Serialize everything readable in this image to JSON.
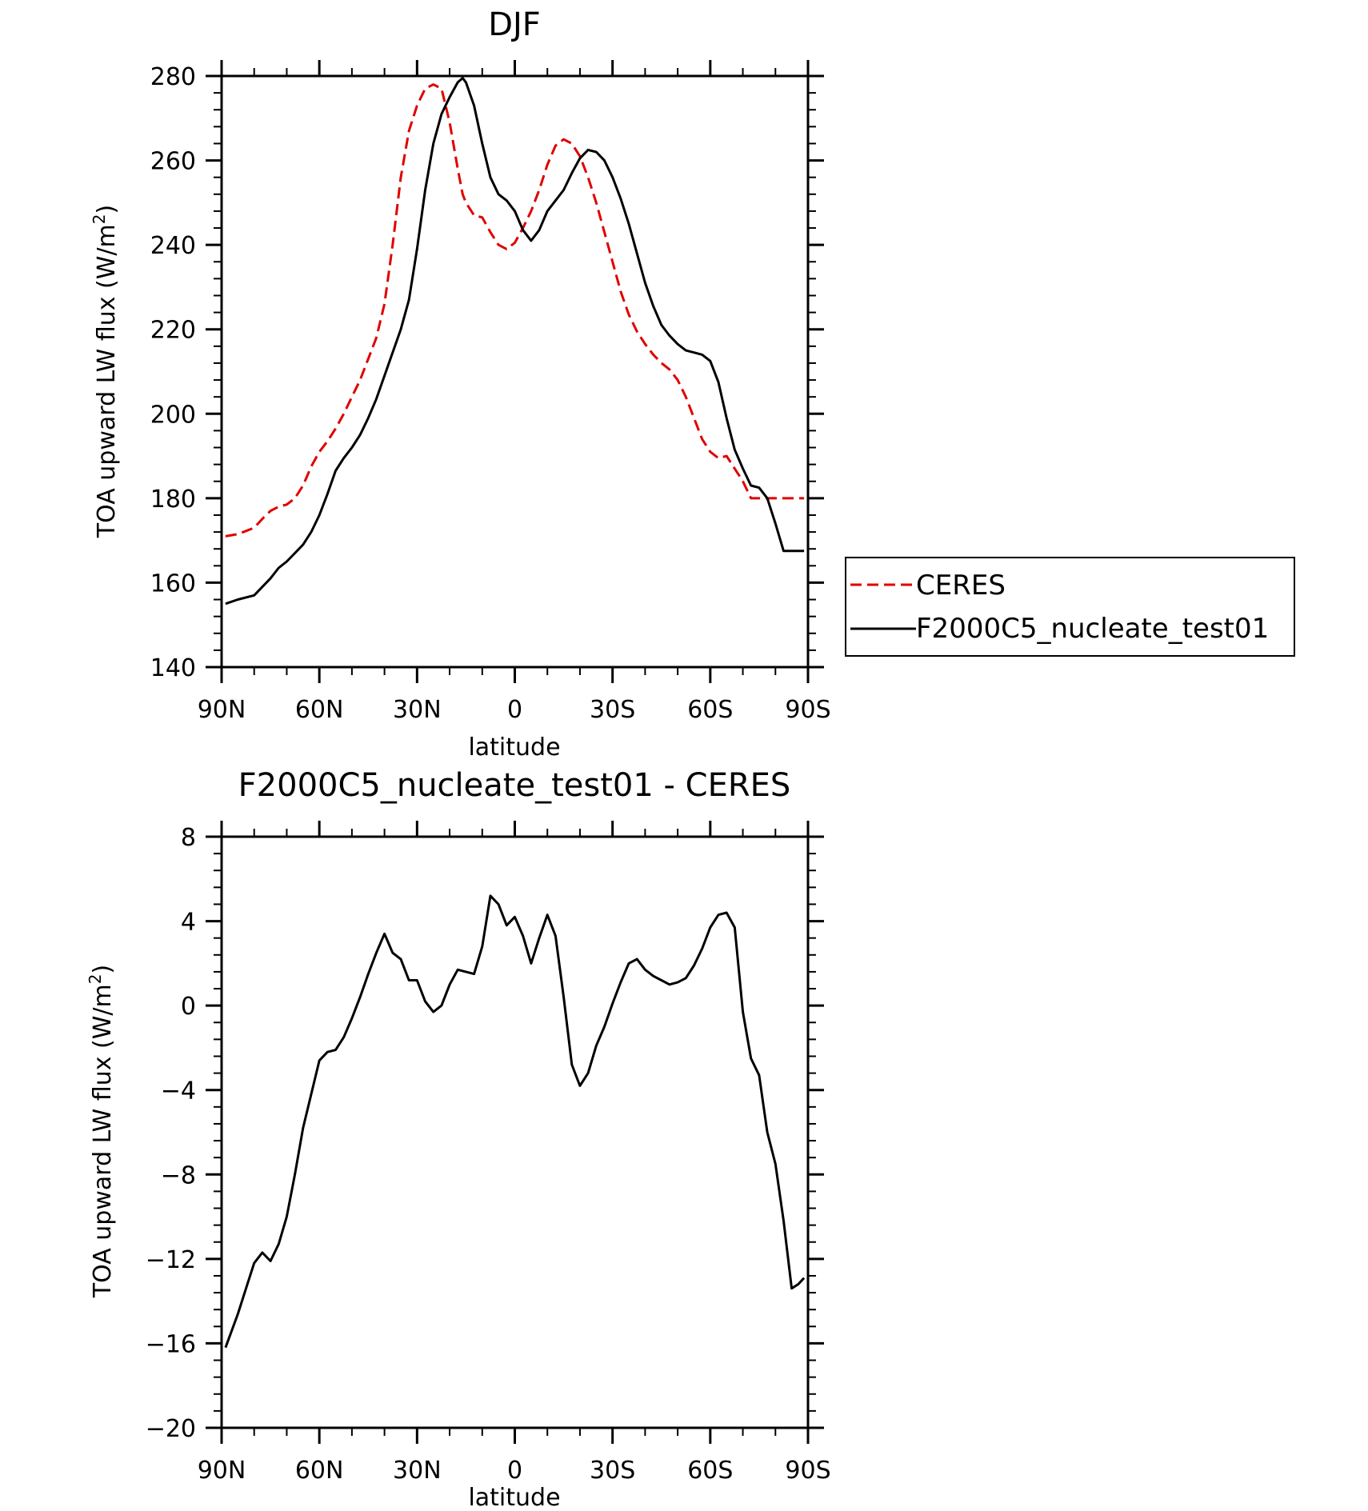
{
  "chart_data": [
    {
      "type": "line",
      "title": "DJF",
      "xlabel": "latitude",
      "ylabel": "TOA upward LW flux (W/m",
      "ylabel_sup": "2",
      "ylabel_close": ")",
      "xlim": [
        90,
        -90
      ],
      "ylim": [
        140,
        280
      ],
      "x_ticks": [
        90,
        60,
        30,
        0,
        -30,
        -60,
        -90
      ],
      "x_tick_labels": [
        "90N",
        "60N",
        "30N",
        "0",
        "30S",
        "60S",
        "90S"
      ],
      "y_ticks": [
        140,
        160,
        180,
        200,
        220,
        240,
        260,
        280
      ],
      "y_tick_labels": [
        "140",
        "160",
        "180",
        "200",
        "220",
        "240",
        "260",
        "280"
      ],
      "legend": {
        "position": "right",
        "entries": [
          "CERES",
          "F2000C5_nucleate_test01"
        ]
      },
      "series": [
        {
          "name": "CERES",
          "color": "#e00000",
          "dash": "dashed",
          "x": [
            88.8,
            85.0,
            80.0,
            77.0,
            75.0,
            72.5,
            70.0,
            67.5,
            65.0,
            62.5,
            60.0,
            57.5,
            55.0,
            52.5,
            50.0,
            47.5,
            45.0,
            42.5,
            40.0,
            37.5,
            35.0,
            32.5,
            30.0,
            27.5,
            25.0,
            22.5,
            20.0,
            17.5,
            16.0,
            15.0,
            12.5,
            10.0,
            7.5,
            5.0,
            2.5,
            0.0,
            -2.5,
            -5.0,
            -7.5,
            -10.0,
            -12.5,
            -15.0,
            -17.5,
            -20.0,
            -22.5,
            -25.0,
            -27.5,
            -30.0,
            -32.5,
            -35.0,
            -37.5,
            -40.0,
            -42.5,
            -45.0,
            -47.5,
            -50.0,
            -52.5,
            -55.0,
            -57.5,
            -60.0,
            -62.5,
            -65.0,
            -67.5,
            -70.0,
            -72.5,
            -75.0,
            -77.5,
            -80.0,
            -82.5,
            -85.0,
            -88.8
          ],
          "y": [
            171.0,
            171.5,
            173.0,
            175.5,
            177.0,
            178.0,
            178.5,
            180.0,
            183.0,
            187.5,
            191.0,
            193.5,
            196.5,
            200.0,
            204.0,
            208.0,
            213.0,
            218.0,
            226.0,
            240.0,
            256.0,
            267.0,
            273.0,
            277.0,
            278.0,
            277.0,
            269.0,
            258.0,
            252.0,
            250.0,
            247.0,
            246.5,
            243.0,
            240.0,
            239.0,
            240.5,
            244.0,
            248.0,
            253.0,
            259.0,
            263.5,
            265.0,
            264.0,
            261.0,
            256.0,
            250.0,
            243.0,
            236.0,
            229.0,
            223.5,
            219.5,
            216.5,
            214.0,
            212.0,
            210.5,
            208.0,
            204.0,
            199.0,
            194.0,
            191.0,
            189.5,
            190.0,
            187.0,
            184.0,
            180.0,
            180.0,
            180.0,
            180.0,
            180.0,
            180.0,
            180.0
          ]
        },
        {
          "name": "F2000C5_nucleate_test01",
          "color": "#000000",
          "dash": "solid",
          "x": [
            88.8,
            85.0,
            80.0,
            77.5,
            75.0,
            72.5,
            70.0,
            67.5,
            65.0,
            62.5,
            60.0,
            57.5,
            55.0,
            52.5,
            50.0,
            47.5,
            45.0,
            42.5,
            40.0,
            37.5,
            35.0,
            32.5,
            30.0,
            27.5,
            25.0,
            22.5,
            20.0,
            17.5,
            16.0,
            15.0,
            12.5,
            10.0,
            7.5,
            5.0,
            2.5,
            0.0,
            -2.5,
            -5.0,
            -7.5,
            -10.0,
            -12.5,
            -15.0,
            -17.5,
            -20.0,
            -22.5,
            -25.0,
            -27.5,
            -30.0,
            -32.5,
            -35.0,
            -37.5,
            -40.0,
            -42.5,
            -45.0,
            -47.5,
            -50.0,
            -52.5,
            -55.0,
            -57.5,
            -60.0,
            -62.5,
            -65.0,
            -67.5,
            -70.0,
            -72.5,
            -75.0,
            -77.5,
            -80.0,
            -82.5,
            -85.0,
            -88.8
          ],
          "y": [
            155.0,
            156.0,
            157.0,
            159.0,
            161.0,
            163.5,
            165.0,
            167.0,
            169.0,
            172.0,
            176.0,
            181.0,
            186.5,
            189.5,
            192.0,
            195.0,
            199.0,
            203.5,
            209.0,
            214.5,
            220.0,
            227.0,
            239.0,
            253.0,
            264.0,
            271.0,
            275.0,
            278.5,
            279.5,
            278.5,
            273.0,
            264.0,
            256.0,
            252.0,
            250.5,
            248.0,
            243.5,
            241.0,
            243.5,
            248.0,
            250.5,
            253.0,
            257.0,
            260.5,
            262.5,
            262.0,
            260.0,
            256.0,
            251.0,
            245.0,
            238.0,
            231.0,
            225.5,
            221.0,
            218.5,
            216.5,
            215.0,
            214.5,
            214.0,
            212.5,
            207.5,
            199.0,
            191.5,
            187.0,
            183.0,
            182.5,
            180.0,
            174.0,
            167.5,
            167.5,
            167.5
          ]
        }
      ]
    },
    {
      "type": "line",
      "title": "F2000C5_nucleate_test01 - CERES",
      "xlabel": "latitude",
      "ylabel": "TOA upward LW flux (W/m",
      "ylabel_sup": "2",
      "ylabel_close": ")",
      "xlim": [
        90,
        -90
      ],
      "ylim": [
        -20,
        8
      ],
      "x_ticks": [
        90,
        60,
        30,
        0,
        -30,
        -60,
        -90
      ],
      "x_tick_labels": [
        "90N",
        "60N",
        "30N",
        "0",
        "30S",
        "60S",
        "90S"
      ],
      "y_ticks": [
        -20,
        -16,
        -12,
        -8,
        -4,
        0,
        4,
        8
      ],
      "y_tick_labels": [
        "−20",
        "−16",
        "−12",
        "−8",
        "−4",
        "0",
        "4",
        "8"
      ],
      "series": [
        {
          "color": "#000000",
          "dash": "solid",
          "x": [
            88.8,
            85.0,
            82.5,
            80.0,
            77.5,
            75.0,
            72.5,
            70.0,
            67.5,
            65.0,
            62.5,
            60.0,
            57.5,
            55.0,
            52.5,
            50.0,
            47.5,
            45.0,
            42.5,
            40.0,
            37.5,
            35.0,
            32.5,
            30.0,
            27.5,
            25.0,
            22.5,
            20.0,
            17.5,
            15.0,
            12.5,
            10.0,
            7.5,
            5.0,
            2.5,
            0.0,
            -2.5,
            -5.0,
            -7.5,
            -10.0,
            -12.5,
            -15.0,
            -17.5,
            -20.0,
            -22.5,
            -25.0,
            -27.5,
            -30.0,
            -32.5,
            -35.0,
            -37.5,
            -40.0,
            -42.5,
            -45.0,
            -47.5,
            -50.0,
            -52.5,
            -55.0,
            -57.5,
            -60.0,
            -62.5,
            -65.0,
            -67.5,
            -70.0,
            -72.5,
            -75.0,
            -77.5,
            -80.0,
            -82.5,
            -85.0,
            -87.0,
            -88.8
          ],
          "y": [
            -16.2,
            -14.6,
            -13.4,
            -12.2,
            -11.7,
            -12.1,
            -11.3,
            -10.0,
            -8.0,
            -5.8,
            -4.2,
            -2.6,
            -2.2,
            -2.1,
            -1.5,
            -0.6,
            0.4,
            1.5,
            2.5,
            3.4,
            2.5,
            2.2,
            1.2,
            1.2,
            0.2,
            -0.3,
            0.0,
            1.0,
            1.7,
            1.6,
            1.5,
            2.8,
            5.2,
            4.8,
            3.8,
            4.2,
            3.3,
            2.0,
            3.2,
            4.3,
            3.3,
            0.4,
            -2.8,
            -3.8,
            -3.2,
            -1.9,
            -1.0,
            0.1,
            1.1,
            2.0,
            2.2,
            1.7,
            1.4,
            1.2,
            1.0,
            1.1,
            1.3,
            1.9,
            2.7,
            3.7,
            4.3,
            4.4,
            3.7,
            -0.3,
            -2.5,
            -3.3,
            -6.0,
            -7.5,
            -10.2,
            -13.4,
            -13.2,
            -12.9
          ]
        }
      ]
    }
  ]
}
